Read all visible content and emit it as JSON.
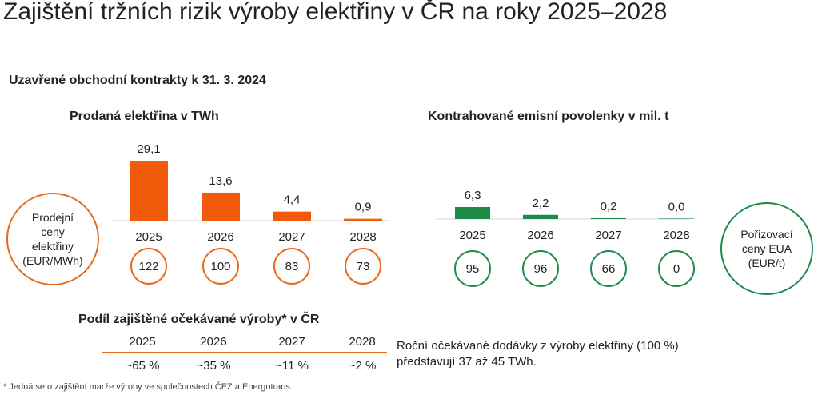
{
  "title": "Zajištění tržních rizik výroby elektřiny v ČR na roky 2025–2028",
  "subtitle": "Uzavřené obchodní kontrakty k 31. 3. 2024",
  "chart_data": [
    {
      "type": "bar",
      "title": "Prodaná elektřina v TWh",
      "categories": [
        "2025",
        "2026",
        "2027",
        "2028"
      ],
      "values": [
        29.1,
        13.6,
        4.4,
        0.9
      ],
      "value_labels": [
        "29,1",
        "13,6",
        "4,4",
        "0,9"
      ],
      "color": "#f05a0a",
      "circle_label": "Prodejní ceny elektřiny (EUR/MWh)",
      "circle_values": [
        "122",
        "100",
        "83",
        "73"
      ],
      "circle_color": "#e96a1e"
    },
    {
      "type": "bar",
      "title": "Kontrahované emisní povolenky v mil. t",
      "categories": [
        "2025",
        "2026",
        "2027",
        "2028"
      ],
      "values": [
        6.3,
        2.2,
        0.2,
        0.0
      ],
      "value_labels": [
        "6,3",
        "2,2",
        "0,2",
        "0,0"
      ],
      "color": "#1e8a4a",
      "circle_label": "Pořizovací ceny EUA (EUR/t)",
      "circle_values": [
        "95",
        "96",
        "66",
        "0"
      ],
      "circle_color": "#1e8a4a"
    }
  ],
  "share": {
    "title": "Podíl zajištěné očekávané výroby* v ČR",
    "years": [
      "2025",
      "2026",
      "2027",
      "2028"
    ],
    "values": [
      "~65 %",
      "~35 %",
      "~11 %",
      "~2 %"
    ]
  },
  "note": {
    "line1": "Roční očekávané dodávky z výroby elektřiny (100 %)",
    "line2": "představují 37 až 45 TWh."
  },
  "footnote": "* Jedná se o zajištění marže výroby ve společnostech ČEZ a Energotrans."
}
